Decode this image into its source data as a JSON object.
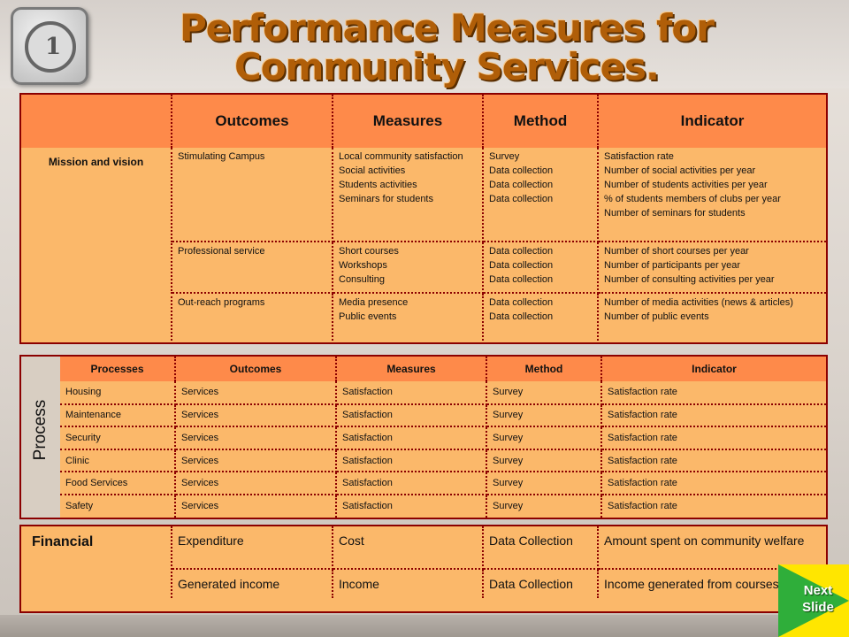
{
  "title": "Performance Measures for Community Services.",
  "mission_table": {
    "headers": [
      "",
      "Outcomes",
      "Measures",
      "Method",
      "Indicator"
    ],
    "row_label": "Mission and vision",
    "rows": [
      {
        "outcome": "Stimulating Campus",
        "measures": "Local community satisfaction\nSocial activities\nStudents activities\nSeminars for students",
        "method": "Survey\nData collection\nData collection\nData collection",
        "indicator": "Satisfaction rate\nNumber of social activities per year\nNumber of students activities per year\n% of students members of clubs per year\nNumber of seminars for students"
      },
      {
        "outcome": "Professional service",
        "measures": "Short courses\nWorkshops\nConsulting",
        "method": "Data collection\nData collection\nData collection",
        "indicator": "Number of short courses per year\nNumber of participants per year\nNumber of consulting activities per year"
      },
      {
        "outcome": "Out-reach programs",
        "measures": "Media presence\nPublic events",
        "method": "Data collection\nData collection",
        "indicator": "Number of media activities (news & articles)\nNumber of public events"
      }
    ]
  },
  "process_table": {
    "side_label": "Process",
    "headers": [
      "Processes",
      "Outcomes",
      "Measures",
      "Method",
      "Indicator"
    ],
    "rows": [
      [
        "Housing",
        "Services",
        "Satisfaction",
        "Survey",
        "Satisfaction rate"
      ],
      [
        "Maintenance",
        "Services",
        "Satisfaction",
        "Survey",
        "Satisfaction rate"
      ],
      [
        "Security",
        "Services",
        "Satisfaction",
        "Survey",
        "Satisfaction rate"
      ],
      [
        "Clinic",
        "Services",
        "Satisfaction",
        "Survey",
        "Satisfaction rate"
      ],
      [
        "Food Services",
        "Services",
        "Satisfaction",
        "Survey",
        "Satisfaction rate"
      ],
      [
        "Safety",
        "Services",
        "Satisfaction",
        "Survey",
        "Satisfaction rate"
      ]
    ]
  },
  "financial_table": {
    "row_label": "Financial",
    "rows": [
      [
        "Expenditure",
        "Cost",
        "Data Collection",
        "Amount spent on community welfare"
      ],
      [
        "Generated income",
        "Income",
        "Data Collection",
        "Income generated from courses"
      ]
    ]
  },
  "next_button": {
    "label": "Next\nSlide"
  },
  "colors": {
    "header": "#fe8a4a",
    "body": "#fbb86a",
    "border": "#8b0000",
    "title": "#b05e08",
    "button": "#ffe600",
    "arrow": "#2fae3a"
  }
}
